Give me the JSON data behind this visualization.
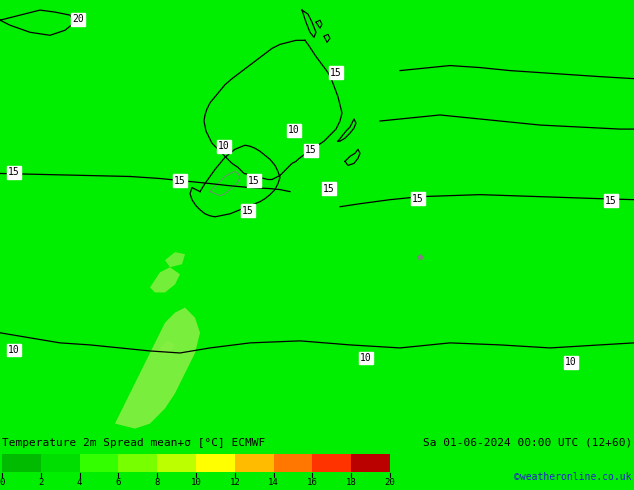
{
  "title_left": "Temperature 2m Spread mean+σ [°C] ECMWF",
  "title_right": "Sa 01-06-2024 00:00 UTC (12+60)",
  "credit": "©weatheronline.co.uk",
  "background_color": "#00EE00",
  "colorbar_colors": [
    "#00BB00",
    "#00DD00",
    "#33FF00",
    "#77FF00",
    "#BBFF00",
    "#FFFF00",
    "#FFBB00",
    "#FF7700",
    "#FF3300",
    "#BB0000",
    "#770000"
  ],
  "colorbar_ticks": [
    0,
    2,
    4,
    6,
    8,
    10,
    12,
    14,
    16,
    18,
    20
  ],
  "spread_color_low": "#88EE44",
  "spread_color_mid": "#AADE44",
  "label_fontsize": 7,
  "title_fontsize": 8
}
